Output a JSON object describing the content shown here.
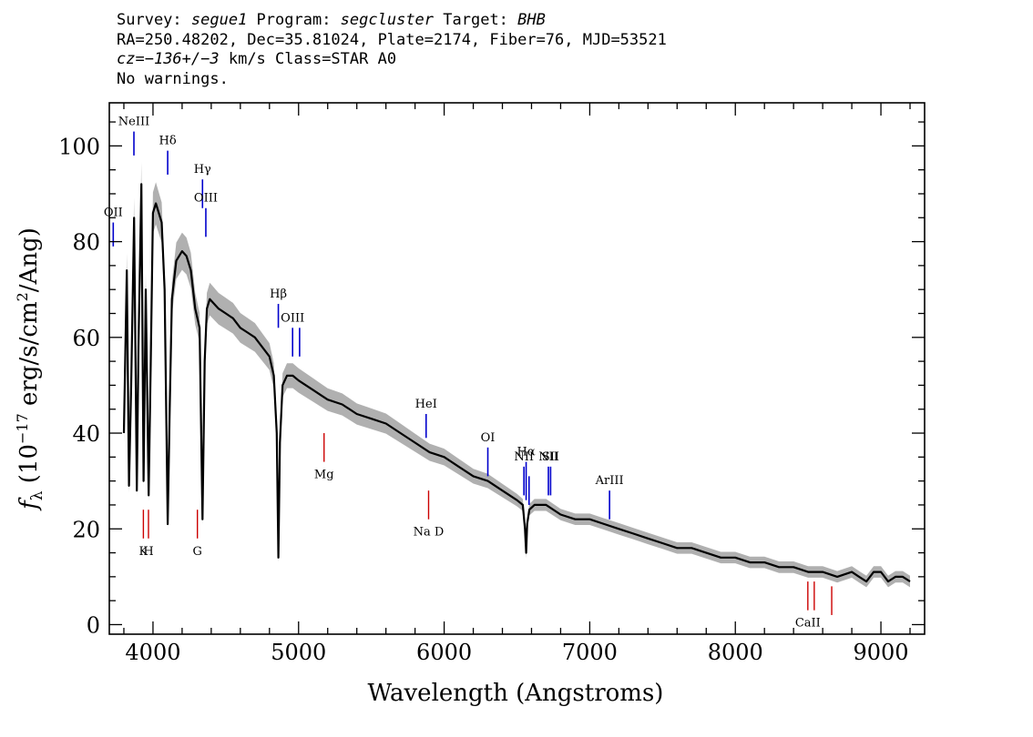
{
  "header": {
    "line1": [
      {
        "text": "Survey: ",
        "italic": false
      },
      {
        "text": "segue1",
        "italic": true
      },
      {
        "text": " Program: ",
        "italic": false
      },
      {
        "text": "segcluster",
        "italic": true
      },
      {
        "text": " Target: ",
        "italic": false
      },
      {
        "text": "BHB",
        "italic": true
      }
    ],
    "line2": "RA=250.48202, Dec=35.81024, Plate=2174, Fiber=76, MJD=53521",
    "line3": [
      {
        "text": "cz=",
        "italic": true
      },
      {
        "text": "−136+/−3",
        "italic": true
      },
      {
        "text": " km/s Class=STAR A0",
        "italic": false
      }
    ],
    "line4": "No warnings."
  },
  "colors": {
    "emission": "#0000cc",
    "absorption": "#cc0000",
    "spectrum": "#000000",
    "error": "#b0b0b0"
  },
  "chart_data": {
    "type": "line",
    "xlabel": "Wavelength (Angstroms)",
    "ylabel": {
      "base": "f",
      "sub": "λ",
      "rest1": " (10",
      "sup1": "−17",
      "rest2": " erg/s/cm",
      "sup2": "2",
      "rest3": "/Ang)"
    },
    "xlim": [
      3700,
      9300
    ],
    "ylim": [
      -2,
      109
    ],
    "xticks": [
      4000,
      5000,
      6000,
      7000,
      8000,
      9000
    ],
    "yticks": [
      0,
      20,
      40,
      60,
      80,
      100
    ],
    "grid": false,
    "series": [
      {
        "x": [
          3800,
          3820,
          3835,
          3850,
          3870,
          3889,
          3900,
          3920,
          3935,
          3950,
          3970,
          3985,
          4000,
          4020,
          4040,
          4060,
          4080,
          4101,
          4115,
          4130,
          4160,
          4200,
          4230,
          4260,
          4290,
          4320,
          4340,
          4355,
          4370,
          4390,
          4420,
          4450,
          4500,
          4550,
          4600,
          4650,
          4700,
          4750,
          4800,
          4830,
          4850,
          4861,
          4872,
          4890,
          4920,
          4960,
          5000,
          5050,
          5100,
          5150,
          5200,
          5300,
          5400,
          5500,
          5600,
          5700,
          5800,
          5900,
          6000,
          6100,
          6200,
          6300,
          6400,
          6500,
          6540,
          6555,
          6563,
          6570,
          6585,
          6620,
          6700,
          6800,
          6900,
          7000,
          7100,
          7200,
          7300,
          7400,
          7500,
          7600,
          7700,
          7800,
          7900,
          8000,
          8100,
          8200,
          8300,
          8400,
          8500,
          8600,
          8700,
          8800,
          8850,
          8900,
          8950,
          9000,
          9050,
          9100,
          9150,
          9200
        ],
        "y": [
          40,
          74,
          29,
          50,
          85,
          28,
          58,
          92,
          30,
          70,
          27,
          55,
          86,
          88,
          86,
          84,
          70,
          21,
          45,
          68,
          76,
          78,
          77,
          74,
          66,
          62,
          22,
          55,
          66,
          68,
          67,
          66,
          65,
          64,
          62,
          61,
          60,
          58,
          56,
          52,
          40,
          14,
          38,
          50,
          52,
          52,
          51,
          50,
          49,
          48,
          47,
          46,
          44,
          43,
          42,
          40,
          38,
          36,
          35,
          33,
          31,
          30,
          28,
          26,
          25,
          20,
          15,
          21,
          24,
          25,
          25,
          23,
          22,
          22,
          21,
          20,
          19,
          18,
          17,
          16,
          16,
          15,
          14,
          14,
          13,
          13,
          12,
          12,
          11,
          11,
          10,
          11,
          10,
          9,
          11,
          11,
          9,
          10,
          10,
          9
        ]
      }
    ],
    "emission_lines": [
      {
        "label": "OII",
        "wave": 3727,
        "y_top": 84,
        "y_bot": 79
      },
      {
        "label": "NeIII",
        "wave": 3869,
        "y_top": 103,
        "y_bot": 98
      },
      {
        "label": "Hδ",
        "wave": 4101,
        "y_top": 99,
        "y_bot": 94
      },
      {
        "label": "Hγ",
        "wave": 4340,
        "y_top": 93,
        "y_bot": 87
      },
      {
        "label": "OIII",
        "wave": 4363,
        "y_top": 87,
        "y_bot": 81
      },
      {
        "label": "Hβ",
        "wave": 4861,
        "y_top": 67,
        "y_bot": 62
      },
      {
        "label": "OIII",
        "wave": 4959,
        "y_top": 62,
        "y_bot": 56
      },
      {
        "label": "",
        "wave": 5007,
        "y_top": 62,
        "y_bot": 56
      },
      {
        "label": "HeI",
        "wave": 5876,
        "y_top": 44,
        "y_bot": 39
      },
      {
        "label": "OI",
        "wave": 6300,
        "y_top": 37,
        "y_bot": 31
      },
      {
        "label": "NII",
        "wave": 6548,
        "y_top": 33,
        "y_bot": 27
      },
      {
        "label": "Hα",
        "wave": 6563,
        "y_top": 34,
        "y_bot": 26
      },
      {
        "label": "",
        "wave": 6583,
        "y_top": 31,
        "y_bot": 25
      },
      {
        "label": "NII",
        "wave": 6716,
        "y_top": 33,
        "y_bot": 27
      },
      {
        "label": "SII",
        "wave": 6731,
        "y_top": 33,
        "y_bot": 27
      },
      {
        "label": "ArIII",
        "wave": 7136,
        "y_top": 28,
        "y_bot": 22
      }
    ],
    "absorption_lines": [
      {
        "label": "K",
        "wave": 3934,
        "y_top": 24,
        "y_bot": 18
      },
      {
        "label": "H",
        "wave": 3969,
        "y_top": 24,
        "y_bot": 18
      },
      {
        "label": "G",
        "wave": 4305,
        "y_top": 24,
        "y_bot": 18
      },
      {
        "label": "Mg",
        "wave": 5175,
        "y_top": 40,
        "y_bot": 34
      },
      {
        "label": "Na D",
        "wave": 5893,
        "y_top": 28,
        "y_bot": 22
      },
      {
        "label": "CaII",
        "wave": 8498,
        "y_top": 9,
        "y_bot": 3
      },
      {
        "label": "",
        "wave": 8542,
        "y_top": 9,
        "y_bot": 3
      },
      {
        "label": "",
        "wave": 8662,
        "y_top": 8,
        "y_bot": 2
      }
    ]
  }
}
